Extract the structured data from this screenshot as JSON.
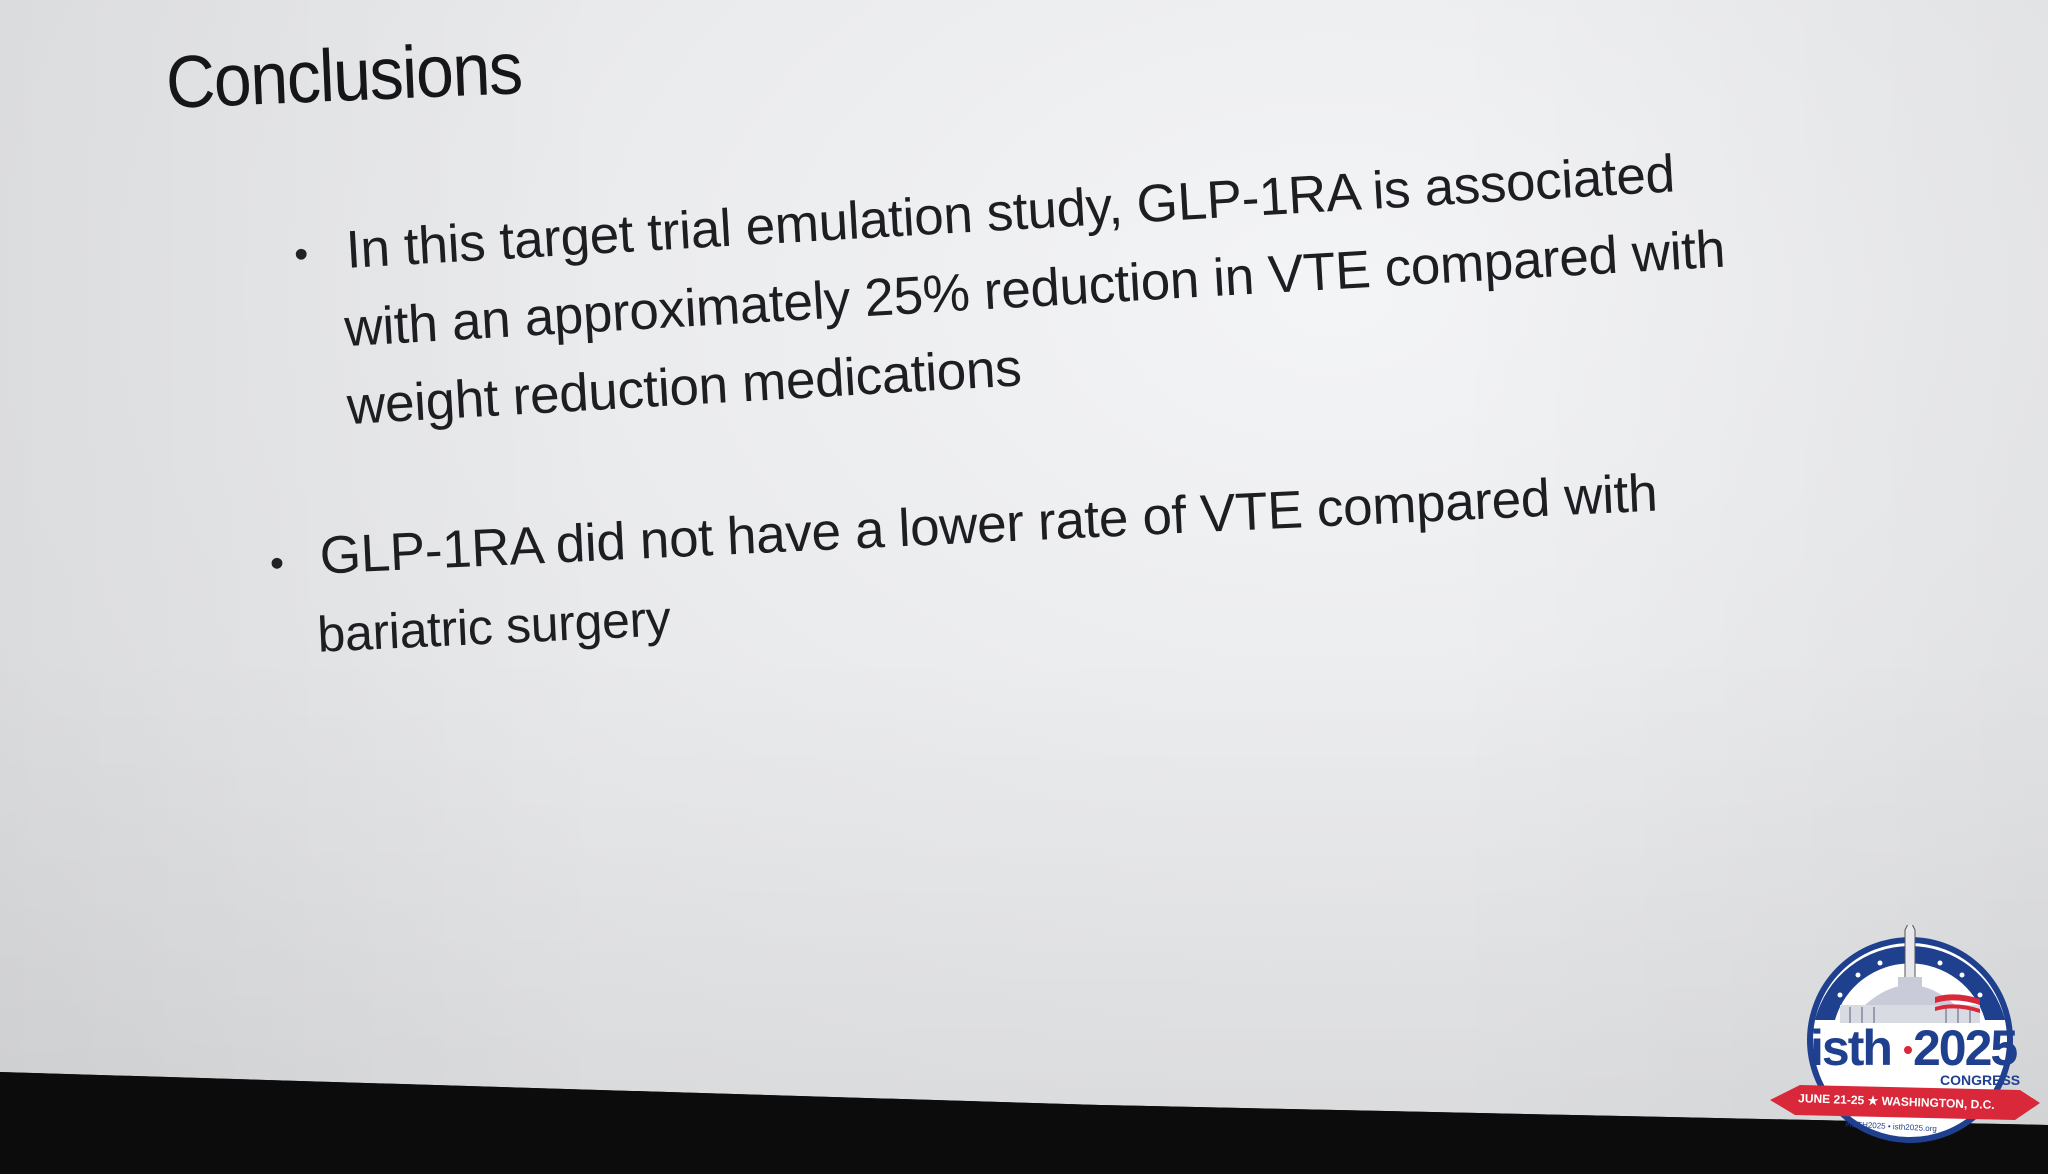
{
  "slide": {
    "title": "Conclusions",
    "bullets": [
      {
        "lines": [
          "In this target trial emulation study, GLP-1RA is associated",
          "with an approximately 25% reduction in VTE compared with",
          "weight reduction medications"
        ]
      },
      {
        "lines": [
          "GLP-1RA did not have a lower rate of VTE compared with",
          "bariatric surgery"
        ]
      }
    ],
    "bullet_glyph": "•"
  },
  "logo": {
    "wordmark_left": "isth",
    "year": "2025",
    "subtitle": "CONGRESS",
    "ribbon": "JUNE 21-25 ★ WASHINGTON, D.C.",
    "footer": "#ISTH2025 • isth2025.org",
    "colors": {
      "blue": "#1f3f8f",
      "red": "#d8283a",
      "white": "#ffffff"
    }
  }
}
